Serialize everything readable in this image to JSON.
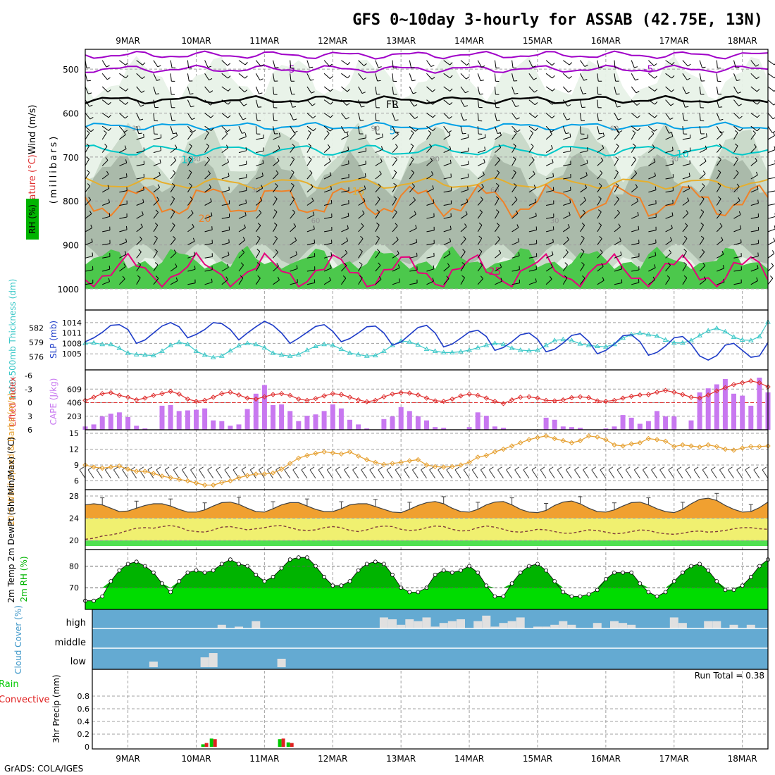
{
  "title": "GFS 0~10day 3-hourly for ASSAB (42.75E, 13N)",
  "credit": "GrADS: COLA/IGES",
  "colors": {
    "grid": "#a0a0a0",
    "frame": "#000000",
    "rh_light": "#e8f2e8",
    "rh_mid": "#c8d8c8",
    "rh_dark": "#a8b8a8",
    "rh_green": "#4cc84c",
    "temp_m5": "#a000c8",
    "temp_fr": "#000000",
    "temp_5": "#00a0e6",
    "temp_10": "#00c8c8",
    "temp_15": "#e6af2d",
    "temp_20": "#f08228",
    "temp_25": "#e6007d",
    "slp": "#1e3cc8",
    "thick": "#3cc8c8",
    "cape": "#c878f0",
    "li": "#e03030",
    "wind": "#e6a030",
    "barb": "#000000",
    "t2m_fill": "#f0a030",
    "dew_fill": "#f0f070",
    "dew_low": "#50e050",
    "rh2_light": "#00dc00",
    "rh2_dark": "#00b400",
    "cloud_bg": "#64aad2",
    "cloud_fill": "#e0e0e0",
    "rain_total": "#00c800",
    "rain_conv": "#e02020",
    "lab_rh": "#00b400",
    "lab_temp": "#e03030",
    "lab_wind": "#000000",
    "lab_thick": "#3cc8c8",
    "lab_slp": "#1e3cc8",
    "lab_li": "#e03030",
    "lab_cape": "#c878f0",
    "lab_cloud": "#3c96c8"
  },
  "chart_data": {
    "type": "meteogram",
    "x_axis": {
      "tick_labels": [
        "9MAR",
        "10MAR",
        "11MAR",
        "12MAR",
        "13MAR",
        "14MAR",
        "15MAR",
        "16MAR",
        "17MAR",
        "18MAR"
      ],
      "steps": 81,
      "step_hours": 3
    },
    "panels": {
      "upper_air": {
        "ylabel_wind": "Wind (m/s)",
        "ylabel_temp": "Temperature (°C)",
        "ylabel_rh_box": "RH (%)",
        "ylabel_pres": "(millibars)",
        "y_ticks": [
          500,
          600,
          700,
          800,
          900,
          1000
        ],
        "ylim": [
          455,
          1000
        ],
        "temp_contours": [
          {
            "label": "-5",
            "pressure": 468
          },
          {
            "label": "-5",
            "pressure": 500
          },
          {
            "label": "FR",
            "pressure": 570
          },
          {
            "label": "5",
            "pressure": 630
          },
          {
            "label": "10",
            "pressure": 685
          },
          {
            "label": "15",
            "pressure": 760
          },
          {
            "label": "20",
            "pressure": 800
          },
          {
            "label": "25",
            "pressure": 960
          }
        ],
        "contour_labels": [
          {
            "text": "-5",
            "idx": 24,
            "p": 500
          },
          {
            "text": "-5",
            "idx": 66,
            "p": 500
          },
          {
            "text": "FR",
            "idx": 36,
            "p": 580
          },
          {
            "text": "FR",
            "idx": 96,
            "p": 568
          },
          {
            "text": "5",
            "idx": 36,
            "p": 640
          },
          {
            "text": "5",
            "idx": 86,
            "p": 625
          },
          {
            "text": "10",
            "idx": 12,
            "p": 706
          },
          {
            "text": "10",
            "idx": 70,
            "p": 693
          },
          {
            "text": "15",
            "idx": 32,
            "p": 778
          },
          {
            "text": "15",
            "idx": 92,
            "p": 762
          },
          {
            "text": "20",
            "idx": 82,
            "p": 803
          },
          {
            "text": "20",
            "idx": 14,
            "p": 840
          },
          {
            "text": "25",
            "idx": 48,
            "p": 960
          }
        ],
        "rh_labels": [
          "30",
          "30",
          "30",
          "60",
          "90",
          "30",
          "60",
          "30",
          "60",
          "30",
          "90"
        ]
      },
      "slp_thickness": {
        "ylabel_thick": "1000-500mb Thickness (dm)",
        "ylabel_slp": "SLP (mb)",
        "thick_ticks": [
          576,
          579,
          582
        ],
        "slp_ticks": [
          1005,
          1008,
          1011,
          1014
        ],
        "slp_range": [
          1002,
          1016
        ],
        "thick_range": [
          574.5,
          584.5
        ],
        "slp": [
          1008.5,
          1009.6,
          1011.2,
          1013.2,
          1013.4,
          1012.0,
          1008.0,
          1009.0,
          1011.0,
          1013.0,
          1014.0,
          1012.8,
          1009.6,
          1010.6,
          1012.0,
          1014.0,
          1013.7,
          1012.0,
          1009.0,
          1011.0,
          1012.8,
          1014.4,
          1013.2,
          1011.0,
          1008.0,
          1009.5,
          1011.2,
          1012.9,
          1013.4,
          1011.5,
          1008.5,
          1009.4,
          1011.0,
          1012.8,
          1013.0,
          1011.0,
          1007.5,
          1008.4,
          1010.5,
          1012.6,
          1013.2,
          1011.0,
          1007.0,
          1007.8,
          1009.5,
          1011.3,
          1011.8,
          1010.0,
          1006.0,
          1006.8,
          1008.5,
          1010.5,
          1011.0,
          1009.2,
          1005.6,
          1006.3,
          1008.1,
          1010.3,
          1010.8,
          1008.6,
          1005.0,
          1006.0,
          1007.8,
          1010.2,
          1010.5,
          1008.5,
          1004.6,
          1005.4,
          1007.2,
          1009.6,
          1010.0,
          1007.8,
          1004.4,
          1003.2,
          1004.5,
          1007.5,
          1008.0,
          1006.0,
          1004.0,
          1004.4,
          1008.2
        ],
        "thickness": [
          578.8,
          578.9,
          578.6,
          578.6,
          577.8,
          576.8,
          576.5,
          576.4,
          576.3,
          577.2,
          578.4,
          579.0,
          578.6,
          577.2,
          576.4,
          575.9,
          576.2,
          577.3,
          578.3,
          578.8,
          578.6,
          577.9,
          576.8,
          576.4,
          576.2,
          576.5,
          577.4,
          578.2,
          578.6,
          578.4,
          577.6,
          576.8,
          576.5,
          576.2,
          576.3,
          577.2,
          578.4,
          579.3,
          579.1,
          578.5,
          577.6,
          577.2,
          576.9,
          576.9,
          577.1,
          577.4,
          577.9,
          578.4,
          578.8,
          578.6,
          577.8,
          577.4,
          577.3,
          577.4,
          578.4,
          579.4,
          579.6,
          579.4,
          578.7,
          578.4,
          578.2,
          578.1,
          578.6,
          579.9,
          580.6,
          580.9,
          580.6,
          580.3,
          579.5,
          578.9,
          578.9,
          579.4,
          580.4,
          581.4,
          581.9,
          581.2,
          580.1,
          579.5,
          579.4,
          580.2,
          583.2
        ]
      },
      "cape_li": {
        "ylabel_li": "Lifted Index",
        "ylabel_cape": "CAPE (J/kg)",
        "li_ticks": [
          "-6",
          "-3",
          "0",
          "3",
          "6"
        ],
        "cape_ticks": [
          203,
          406,
          609
        ],
        "li_range": [
          -6,
          6
        ],
        "cape_range": [
          0,
          812
        ],
        "lifted_index": [
          -0.5,
          -1.2,
          -2.0,
          -2.2,
          -1.6,
          -1.2,
          -0.6,
          -1.0,
          -1.6,
          -2.0,
          -2.5,
          -1.9,
          -0.8,
          -0.3,
          -0.5,
          -1.2,
          -2.0,
          -2.3,
          -1.7,
          -1.0,
          -0.8,
          -1.3,
          -1.8,
          -2.0,
          -1.6,
          -0.8,
          -0.5,
          -0.9,
          -1.5,
          -2.0,
          -1.8,
          -1.2,
          -0.6,
          -0.2,
          -0.5,
          -1.3,
          -1.9,
          -2.2,
          -2.1,
          -1.7,
          -1.0,
          -0.4,
          -0.3,
          -0.8,
          -1.5,
          -1.9,
          -1.6,
          -1.0,
          -0.3,
          0.2,
          -0.6,
          -1.2,
          -1.3,
          -1.0,
          -0.5,
          -0.4,
          -0.6,
          -1.1,
          -1.3,
          -1.1,
          -0.4,
          -0.3,
          -0.5,
          -1.0,
          -1.4,
          -1.7,
          -1.8,
          -2.3,
          -2.7,
          -2.3,
          -1.8,
          -1.2,
          -1.0,
          -1.7,
          -2.6,
          -3.3,
          -4.0,
          -4.4,
          -4.8,
          -4.4,
          -3.5
        ],
        "cape": [
          50,
          80,
          200,
          240,
          260,
          190,
          60,
          20,
          0,
          360,
          370,
          280,
          290,
          300,
          320,
          140,
          130,
          60,
          80,
          310,
          540,
          670,
          370,
          380,
          280,
          130,
          210,
          230,
          280,
          380,
          320,
          150,
          80,
          20,
          0,
          160,
          200,
          340,
          280,
          200,
          140,
          40,
          30,
          0,
          0,
          40,
          260,
          210,
          50,
          30,
          0,
          0,
          0,
          0,
          180,
          150,
          50,
          40,
          30,
          0,
          0,
          20,
          50,
          220,
          180,
          90,
          130,
          280,
          200,
          200,
          0,
          140,
          560,
          620,
          680,
          760,
          540,
          510,
          360,
          780,
          560
        ]
      },
      "wind10m": {
        "ylabel": "10m Wind Speed & Barbs (m/s)",
        "y_ticks": [
          6,
          9,
          12,
          15
        ],
        "ylim": [
          5,
          15
        ],
        "speed": [
          9.0,
          8.6,
          8.4,
          8.6,
          8.8,
          8.2,
          7.8,
          7.8,
          7.4,
          6.9,
          6.6,
          6.3,
          6.0,
          5.6,
          5.2,
          5.2,
          5.7,
          6.0,
          6.6,
          7.0,
          7.3,
          7.3,
          7.5,
          8.2,
          9.3,
          10.3,
          10.8,
          11.2,
          11.5,
          11.3,
          11.1,
          11.5,
          10.7,
          10.0,
          9.5,
          9.1,
          9.3,
          9.5,
          9.8,
          10.0,
          9.0,
          8.7,
          8.6,
          8.7,
          9.0,
          9.5,
          10.5,
          10.8,
          11.5,
          12.0,
          12.6,
          13.2,
          13.8,
          14.2,
          14.5,
          14.0,
          13.6,
          13.2,
          13.6,
          14.5,
          14.3,
          13.8,
          12.8,
          12.6,
          13.0,
          13.2,
          14.0,
          13.8,
          13.5,
          12.5,
          12.8,
          12.6,
          12.4,
          12.8,
          12.5,
          12.0,
          11.8,
          12.2,
          12.5,
          12.5,
          12.6
        ]
      },
      "temp2m": {
        "ylabel": "2m Temp 2m DewPt (6hr Min/Max) (°C)",
        "y_ticks": [
          20,
          24,
          28
        ],
        "ylim": [
          19,
          28.5
        ],
        "temp": [
          26.4,
          26.6,
          26.4,
          25.8,
          25.2,
          25.3,
          25.8,
          26.3,
          26.6,
          26.6,
          26.2,
          25.6,
          25.1,
          25.1,
          25.5,
          26.2,
          26.8,
          26.9,
          26.5,
          25.8,
          25.2,
          25.1,
          25.7,
          26.4,
          26.8,
          26.8,
          26.2,
          25.6,
          25.2,
          25.2,
          25.7,
          26.4,
          26.6,
          26.6,
          26.1,
          25.6,
          25.1,
          25.0,
          25.6,
          26.3,
          26.8,
          27.0,
          26.6,
          25.8,
          25.2,
          25.1,
          25.6,
          26.4,
          26.9,
          27.0,
          26.4,
          25.6,
          25.1,
          25.0,
          25.4,
          26.3,
          26.9,
          27.1,
          26.6,
          25.8,
          25.2,
          25.1,
          25.5,
          26.2,
          26.8,
          26.9,
          26.4,
          25.7,
          25.2,
          25.0,
          25.6,
          26.6,
          27.4,
          27.6,
          27.2,
          26.3,
          25.6,
          25.1,
          25.2,
          25.9,
          26.9
        ],
        "dewpoint": [
          20.2,
          20.4,
          20.8,
          21.0,
          21.3,
          21.8,
          22.2,
          22.3,
          22.2,
          22.5,
          22.7,
          22.4,
          21.8,
          21.6,
          21.5,
          21.9,
          22.4,
          22.5,
          22.2,
          21.9,
          22.1,
          22.3,
          22.6,
          22.7,
          22.3,
          21.9,
          21.8,
          21.9,
          22.3,
          22.5,
          22.3,
          21.8,
          21.6,
          21.9,
          22.4,
          22.6,
          22.5,
          22.0,
          21.8,
          21.9,
          22.3,
          22.6,
          22.5,
          22.0,
          21.7,
          21.8,
          22.3,
          22.6,
          22.4,
          22.0,
          21.6,
          21.5,
          21.7,
          22.0,
          21.9,
          21.6,
          21.3,
          21.3,
          21.6,
          21.9,
          21.8,
          21.5,
          21.2,
          21.3,
          21.6,
          21.9,
          21.8,
          21.4,
          21.2,
          21.1,
          21.3,
          21.6,
          21.7,
          21.5,
          21.6,
          21.8,
          22.1,
          22.3,
          22.3,
          22.1,
          22.0
        ]
      },
      "rh2m": {
        "ylabel": "2m RH (%)",
        "y_ticks": [
          70,
          80
        ],
        "ylim": [
          60,
          86
        ],
        "rh": [
          64,
          64,
          66,
          73,
          78,
          81,
          82,
          80,
          77,
          72,
          68,
          73,
          77,
          78,
          77,
          78,
          81,
          83,
          81,
          80,
          76,
          73,
          75,
          79,
          83,
          84,
          84,
          80,
          75,
          71,
          71,
          73,
          78,
          81,
          82,
          81,
          76,
          70,
          68,
          68,
          70,
          76,
          78,
          77,
          78,
          80,
          77,
          71,
          66,
          66,
          72,
          77,
          80,
          81,
          78,
          73,
          68,
          66,
          66,
          67,
          69,
          74,
          77,
          77,
          77,
          72,
          68,
          66,
          68,
          73,
          77,
          80,
          81,
          78,
          73,
          69,
          69,
          71,
          75,
          80,
          83
        ]
      },
      "cloud": {
        "ylabel": "Cloud Cover (%)",
        "levels": [
          "high",
          "middle",
          "low"
        ],
        "high": [
          0,
          0,
          0,
          0,
          0,
          0,
          0,
          0,
          0,
          0,
          0,
          0,
          0,
          0,
          0,
          0,
          20,
          0,
          10,
          0,
          40,
          0,
          0,
          0,
          0,
          0,
          0,
          0,
          0,
          0,
          0,
          0,
          0,
          0,
          0,
          60,
          50,
          20,
          50,
          40,
          60,
          10,
          30,
          40,
          50,
          0,
          40,
          70,
          10,
          30,
          40,
          60,
          0,
          10,
          10,
          20,
          40,
          20,
          0,
          0,
          30,
          0,
          40,
          30,
          20,
          0,
          0,
          0,
          0,
          60,
          30,
          0,
          0,
          40,
          40,
          0,
          20,
          0,
          20,
          0,
          0
        ],
        "low": [
          0,
          0,
          0,
          0,
          0,
          0,
          0,
          0,
          0,
          0,
          0,
          0,
          0,
          0,
          0,
          0,
          0,
          0,
          0,
          0,
          0,
          0,
          0,
          0,
          0,
          0,
          0,
          0,
          0,
          0,
          0,
          0,
          0,
          0,
          0,
          0,
          0,
          0,
          0,
          0,
          0,
          0,
          0,
          0,
          0,
          0,
          0,
          0,
          0,
          0,
          0,
          0,
          0,
          0,
          0,
          0,
          0,
          0,
          0,
          0,
          0,
          0,
          0,
          0,
          0,
          0,
          0,
          0,
          0,
          0,
          0,
          0,
          0,
          0,
          0,
          0,
          0,
          0,
          0,
          0,
          0
        ]
      },
      "precip": {
        "ylabel": "3hr Precip (mm)",
        "legend_total": "Total / Rain",
        "legend_conv": "Convective",
        "run_total": "Run Total = 0.38",
        "y_ticks": [
          "0",
          "0.2",
          "0.4",
          "0.6",
          "0.8"
        ],
        "ylim": [
          0,
          1.0
        ],
        "events": [
          {
            "idx": 14,
            "total": 0.04,
            "convective": 0.06
          },
          {
            "idx": 15,
            "total": 0.13,
            "convective": 0.12
          },
          {
            "idx": 23,
            "total": 0.12,
            "convective": 0.13
          },
          {
            "idx": 24,
            "total": 0.07,
            "convective": 0.06
          }
        ]
      }
    }
  }
}
